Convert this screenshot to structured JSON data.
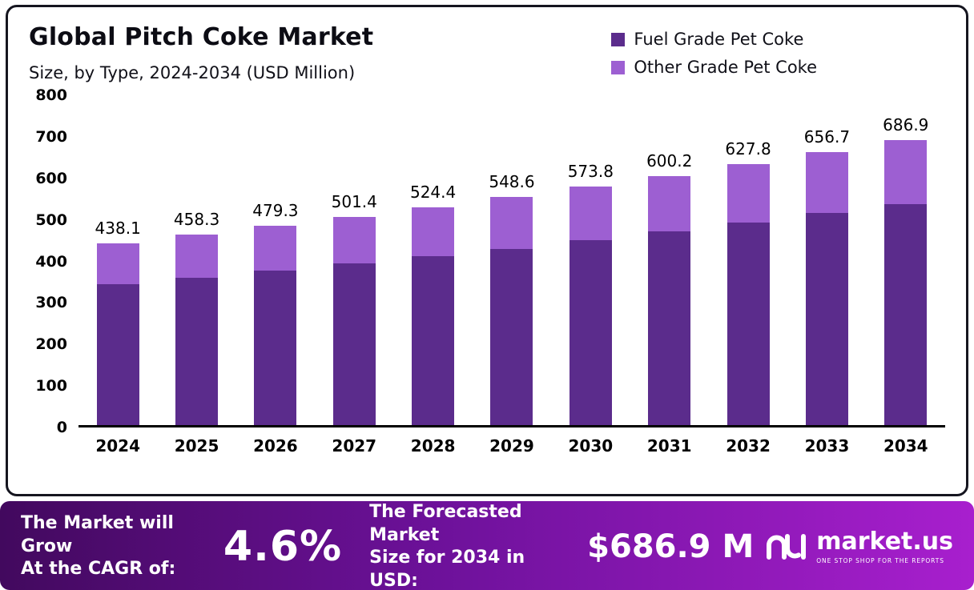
{
  "header": {
    "title": "Global Pitch Coke Market",
    "subtitle": "Size, by Type, 2024-2034 (USD Million)"
  },
  "legend": {
    "items": [
      {
        "label": "Fuel Grade Pet Coke",
        "color": "#5b2c8c"
      },
      {
        "label": "Other Grade Pet Coke",
        "color": "#9d5fd2"
      }
    ]
  },
  "chart_data": {
    "type": "bar",
    "stacked": true,
    "title": "Global Pitch Coke Market Size, by Type, 2024-2034 (USD Million)",
    "categories": [
      "2024",
      "2025",
      "2026",
      "2027",
      "2028",
      "2029",
      "2030",
      "2031",
      "2032",
      "2033",
      "2034"
    ],
    "series": [
      {
        "name": "Fuel Grade Pet Coke",
        "color": "#5b2c8c",
        "values": [
          340,
          355,
          372,
          390,
          407,
          425,
          445,
          466,
          488,
          510,
          533
        ]
      },
      {
        "name": "Other Grade Pet Coke",
        "color": "#9d5fd2",
        "values": [
          98.1,
          103.3,
          107.3,
          111.4,
          117.4,
          123.6,
          128.8,
          134.2,
          139.8,
          146.7,
          153.9
        ]
      }
    ],
    "totals": [
      438.1,
      458.3,
      479.3,
      501.4,
      524.4,
      548.6,
      573.8,
      600.2,
      627.8,
      656.7,
      686.9
    ],
    "xlabel": "",
    "ylabel": "",
    "ylim": [
      0,
      800
    ],
    "yticks": [
      0,
      100,
      200,
      300,
      400,
      500,
      600,
      700,
      800
    ],
    "grid": false,
    "legend_position": "top-right"
  },
  "banner": {
    "cagr_label": "The Market will Grow\nAt the CAGR of:",
    "cagr_value": "4.6%",
    "forecast_label": "The Forecasted Market\nSize for 2034 in USD:",
    "forecast_value": "$686.9 M",
    "brand_name": "market.us",
    "brand_tagline": "ONE STOP SHOP FOR THE REPORTS"
  }
}
